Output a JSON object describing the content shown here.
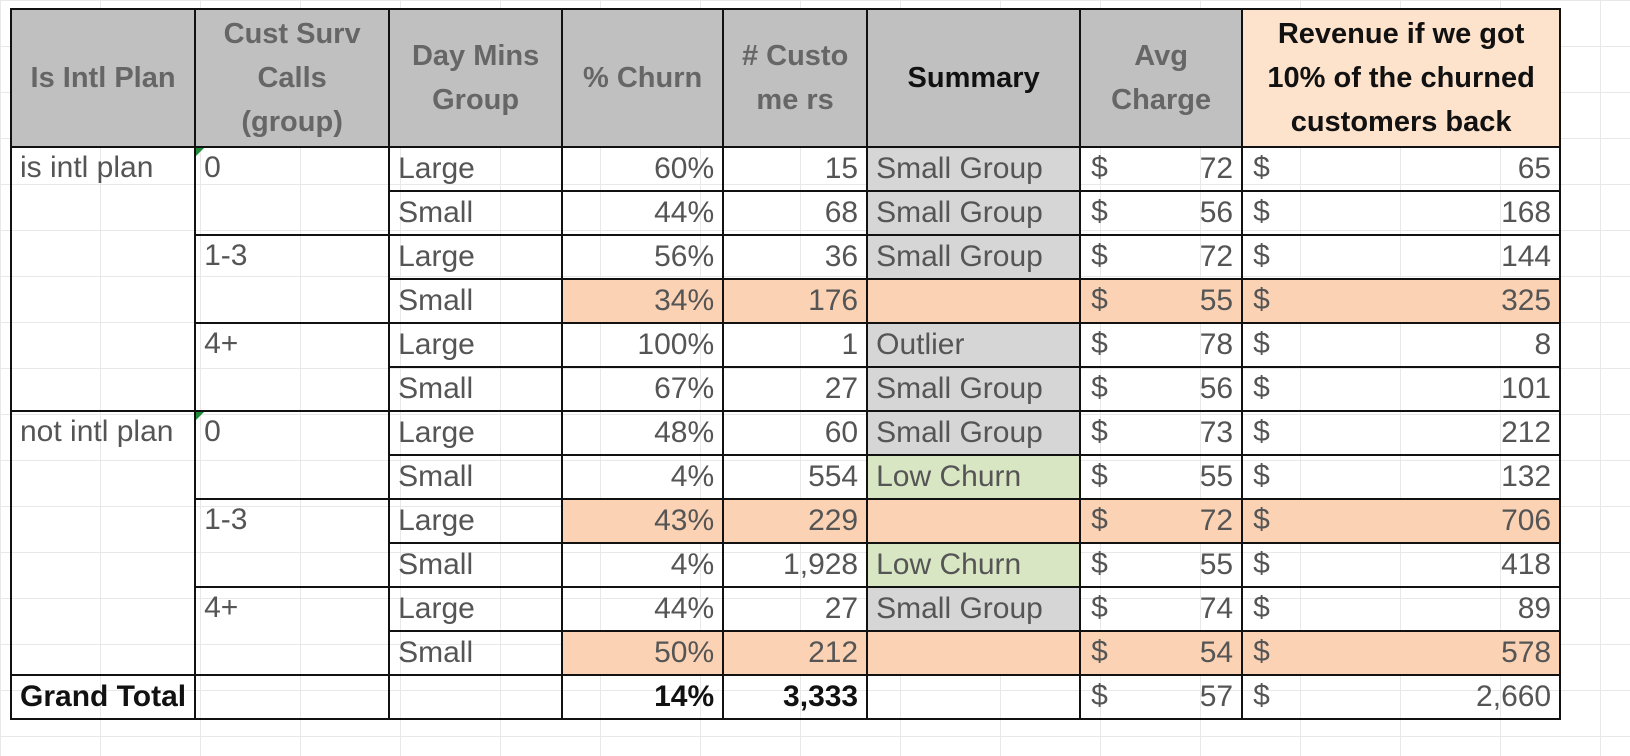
{
  "headers": {
    "intl": "Is Intl Plan",
    "calls": "Cust Surv Calls (group)",
    "mins": "Day Mins Group",
    "churn": "% Churn",
    "customers": "# Custome rs",
    "summary": "Summary",
    "charge": "Avg Charge",
    "revenue": "Revenue if we got 10% of the churned customers back"
  },
  "currency": "$",
  "rows": [
    {
      "intl": "is intl plan",
      "calls": "0",
      "mins": "Large",
      "churn": "60%",
      "customers": "15",
      "summary": "Small Group",
      "charge": "72",
      "revenue": "65",
      "hl": "gray"
    },
    {
      "intl": "",
      "calls": "",
      "mins": "Small",
      "churn": "44%",
      "customers": "68",
      "summary": "Small Group",
      "charge": "56",
      "revenue": "168",
      "hl": "gray"
    },
    {
      "intl": "",
      "calls": "1-3",
      "mins": "Large",
      "churn": "56%",
      "customers": "36",
      "summary": "Small Group",
      "charge": "72",
      "revenue": "144",
      "hl": "gray"
    },
    {
      "intl": "",
      "calls": "",
      "mins": "Small",
      "churn": "34%",
      "customers": "176",
      "summary": "",
      "charge": "55",
      "revenue": "325",
      "hl": "peach"
    },
    {
      "intl": "",
      "calls": "4+",
      "mins": "Large",
      "churn": "100%",
      "customers": "1",
      "summary": "Outlier",
      "charge": "78",
      "revenue": "8",
      "hl": "gray"
    },
    {
      "intl": "",
      "calls": "",
      "mins": "Small",
      "churn": "67%",
      "customers": "27",
      "summary": "Small Group",
      "charge": "56",
      "revenue": "101",
      "hl": "gray"
    },
    {
      "intl": "not intl plan",
      "calls": "0",
      "mins": "Large",
      "churn": "48%",
      "customers": "60",
      "summary": "Small Group",
      "charge": "73",
      "revenue": "212",
      "hl": "gray"
    },
    {
      "intl": "",
      "calls": "",
      "mins": "Small",
      "churn": "4%",
      "customers": "554",
      "summary": "Low Churn",
      "charge": "55",
      "revenue": "132",
      "hl": "green"
    },
    {
      "intl": "",
      "calls": "1-3",
      "mins": "Large",
      "churn": "43%",
      "customers": "229",
      "summary": "",
      "charge": "72",
      "revenue": "706",
      "hl": "peach"
    },
    {
      "intl": "",
      "calls": "",
      "mins": "Small",
      "churn": "4%",
      "customers": "1,928",
      "summary": "Low Churn",
      "charge": "55",
      "revenue": "418",
      "hl": "green"
    },
    {
      "intl": "",
      "calls": "4+",
      "mins": "Large",
      "churn": "44%",
      "customers": "27",
      "summary": "Small Group",
      "charge": "74",
      "revenue": "89",
      "hl": "gray"
    },
    {
      "intl": "",
      "calls": "",
      "mins": "Small",
      "churn": "50%",
      "customers": "212",
      "summary": "",
      "charge": "54",
      "revenue": "578",
      "hl": "peach"
    }
  ],
  "total": {
    "label": "Grand Total",
    "churn": "14%",
    "customers": "3,333",
    "charge": "57",
    "revenue": "2,660"
  },
  "colors": {
    "header_gray": "#c0c0c0",
    "header_revenue": "#fde2cc",
    "peach": "#fbd3b4",
    "gray": "#d6d6d6",
    "green": "#d9e6c3"
  }
}
